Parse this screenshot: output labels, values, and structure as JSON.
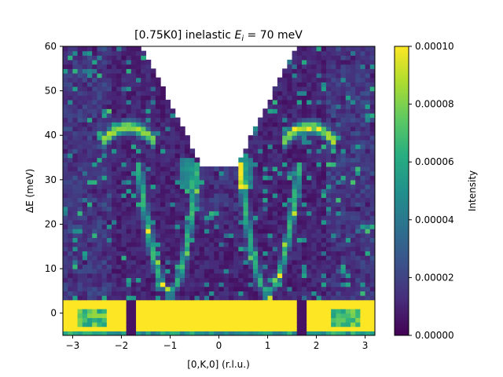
{
  "chart_data": {
    "type": "heatmap",
    "title_prefix": "[0.75K0] inelastic ",
    "title_math": "E",
    "title_sub": "i",
    "title_suffix": " = 70 meV",
    "xlabel": "[0,K,0] (r.l.u.)",
    "ylabel_math": "ΔE",
    "ylabel_suffix": " (meV)",
    "xlim": [
      -3.2,
      3.2
    ],
    "ylim": [
      -5,
      60
    ],
    "xticks": [
      -3,
      -2,
      -1,
      0,
      1,
      2,
      3
    ],
    "yticks": [
      0,
      10,
      20,
      30,
      40,
      50,
      60
    ],
    "colorbar": {
      "label": "Intensity",
      "range": [
        0,
        0.0001
      ],
      "ticks": [
        "0.00000",
        "0.00002",
        "0.00004",
        "0.00006",
        "0.00008",
        "0.00010"
      ],
      "colormap": "viridis"
    },
    "features": {
      "elastic_line": {
        "energy_range": [
          -5,
          3.5
        ],
        "intensity": "saturated (>= 0.00010)"
      },
      "gaps_at_K": [
        -1.75,
        1.75
      ],
      "dispersion_branches": {
        "minimum_energy_meV": 5,
        "minimum_K": [
          -1,
          1
        ],
        "maximum_energy_meV": 42,
        "maximum_K": [
          -1.85,
          1.85
        ]
      },
      "kinematic_limit": "empty region above V-shaped boundary, bottom at ~33 meV near K=0"
    }
  }
}
